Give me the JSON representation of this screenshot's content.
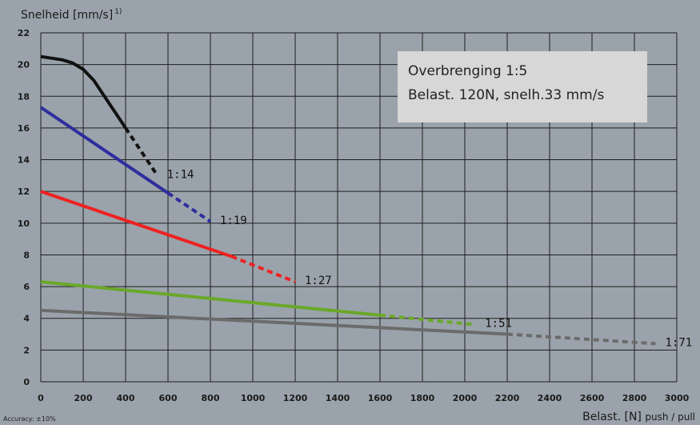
{
  "chart_data": {
    "type": "line",
    "ylabel": "Snelheid [mm/s]",
    "ylabel_sup": "1)",
    "xlabel_main": "Belast. [N]",
    "xlabel_sub": "push / pull",
    "xlim": [
      0,
      3000
    ],
    "ylim": [
      0,
      22
    ],
    "x_ticks": [
      0,
      200,
      400,
      600,
      800,
      1000,
      1200,
      1400,
      1600,
      1800,
      2000,
      2200,
      2400,
      2600,
      2800,
      3000
    ],
    "y_ticks": [
      0,
      2,
      4,
      6,
      8,
      10,
      12,
      14,
      16,
      18,
      20,
      22
    ],
    "grid": true,
    "footnote": "Accuracy: ±10%",
    "info_box": [
      "Overbrenging 1:5",
      "Belast. 120N, snelh.33 mm/s"
    ],
    "series": [
      {
        "name": "1:14",
        "color": "#111111",
        "solid": [
          [
            0,
            20.5
          ],
          [
            100,
            20.3
          ],
          [
            150,
            20.1
          ],
          [
            200,
            19.7
          ],
          [
            250,
            19
          ],
          [
            300,
            18
          ],
          [
            350,
            17
          ],
          [
            400,
            16
          ]
        ],
        "dashed": [
          [
            400,
            16
          ],
          [
            550,
            13
          ]
        ]
      },
      {
        "name": "1:19",
        "color": "#2e2e9e",
        "solid": [
          [
            0,
            17.3
          ],
          [
            600,
            11.9
          ]
        ],
        "dashed": [
          [
            600,
            11.9
          ],
          [
            800,
            10.1
          ]
        ]
      },
      {
        "name": "1:27",
        "color": "#ee2222",
        "solid": [
          [
            0,
            12
          ],
          [
            900,
            7.9
          ]
        ],
        "dashed": [
          [
            900,
            7.9
          ],
          [
            1200,
            6.3
          ]
        ]
      },
      {
        "name": "1:51",
        "color": "#6aa82a",
        "solid": [
          [
            0,
            6.3
          ],
          [
            1600,
            4.2
          ]
        ],
        "dashed": [
          [
            1600,
            4.2
          ],
          [
            2050,
            3.6
          ]
        ]
      },
      {
        "name": "1:71",
        "color": "#6b6b6b",
        "solid": [
          [
            0,
            4.5
          ],
          [
            2200,
            3
          ]
        ],
        "dashed": [
          [
            2200,
            3
          ],
          [
            2900,
            2.4
          ]
        ]
      }
    ]
  }
}
